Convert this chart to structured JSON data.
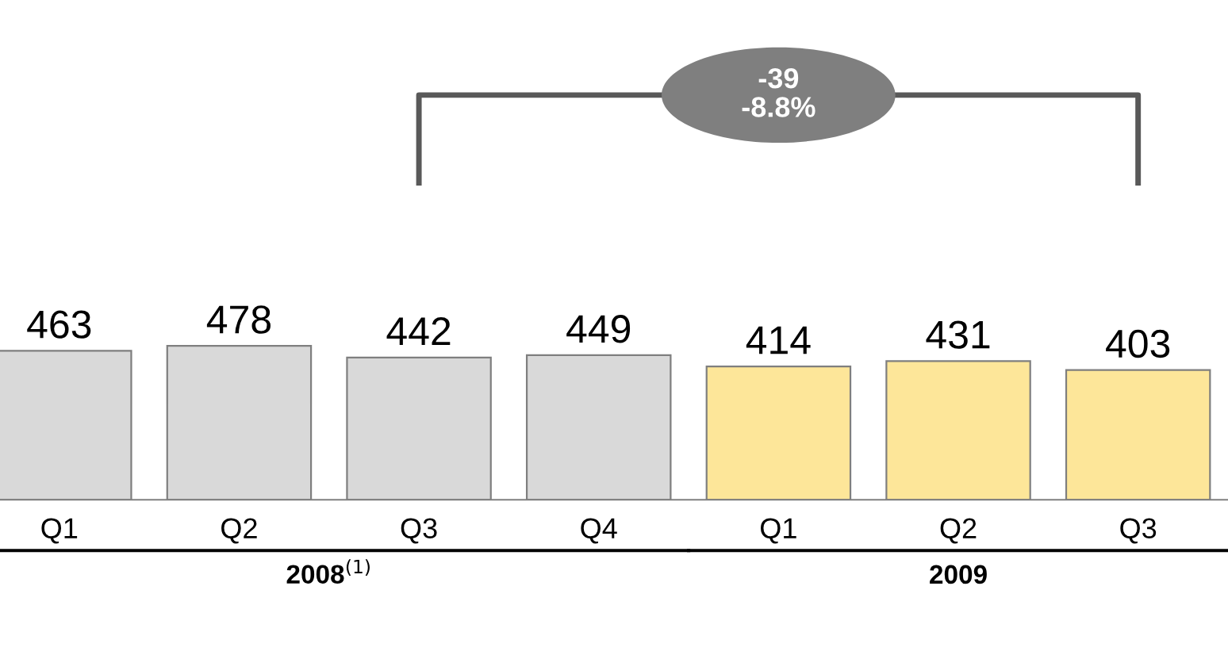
{
  "chart_data": {
    "type": "bar",
    "categories": [
      "Q1",
      "Q2",
      "Q3",
      "Q4",
      "Q1",
      "Q2",
      "Q3"
    ],
    "values": [
      463,
      478,
      442,
      449,
      414,
      431,
      403
    ],
    "colors": [
      "#d9d9d9",
      "#d9d9d9",
      "#d9d9d9",
      "#d9d9d9",
      "#fde699",
      "#fde699",
      "#fde699"
    ],
    "data_labels": true,
    "annotations": [
      "-39\n-8.8%",
      "2008$^{(1)}$",
      "2009"
    ]
  }
}
